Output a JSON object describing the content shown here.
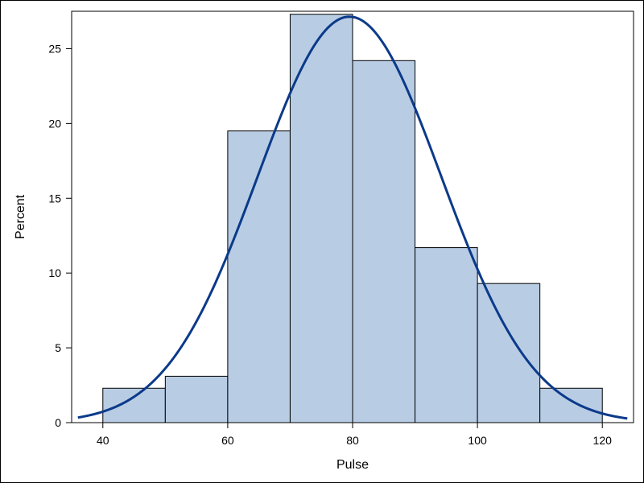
{
  "chart_data": {
    "type": "bar",
    "title": "",
    "xlabel": "Pulse",
    "ylabel": "Percent",
    "bin_edges": [
      40,
      50,
      60,
      70,
      80,
      90,
      100,
      110,
      120
    ],
    "values": [
      2.3,
      3.1,
      19.5,
      27.3,
      24.2,
      11.7,
      9.3,
      2.3
    ],
    "xlim": [
      35,
      125
    ],
    "ylim": [
      0,
      27.5
    ],
    "xticks": [
      40,
      60,
      80,
      100,
      120
    ],
    "yticks": [
      0,
      5,
      10,
      15,
      20,
      25
    ],
    "grid": false,
    "legend": "none",
    "density_curve": {
      "type": "normal",
      "mean": 79.5,
      "std": 14.7,
      "x_range": [
        36,
        124
      ]
    },
    "colors": {
      "bar_fill": "#b8cce4",
      "bar_stroke": "#000000",
      "curve": "#0b3a8a",
      "axis": "#000000"
    }
  }
}
